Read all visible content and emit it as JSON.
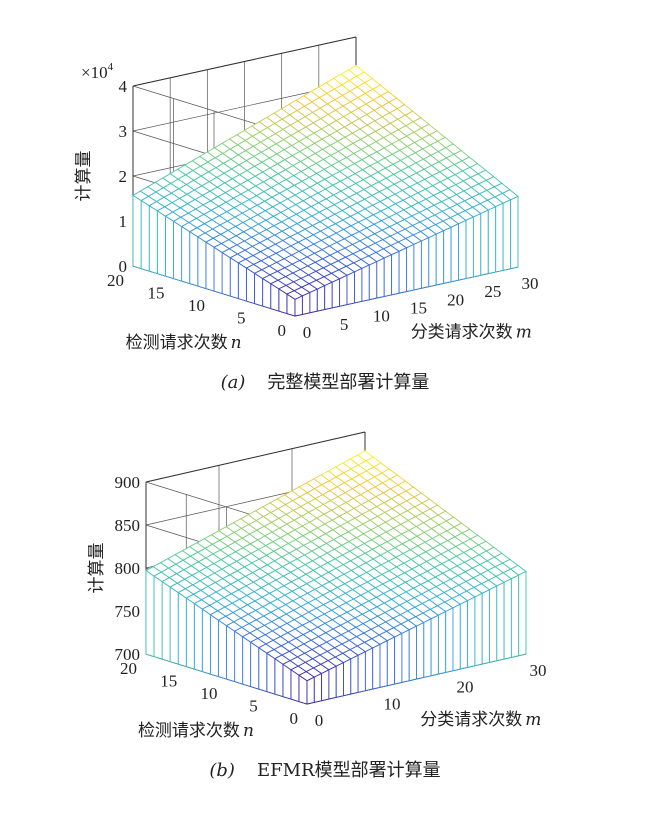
{
  "chart_data": [
    {
      "type": "surface",
      "panel": "a",
      "caption_letter": "(a)",
      "caption_text": "完整模型部署计算量",
      "zlabel": "计算量",
      "xlabel": "分类请求次数",
      "xlabel_var": "m",
      "ylabel": "检测请求次数",
      "ylabel_var": "n",
      "exponent_label": "×10",
      "exponent_power": "4",
      "x_range": [
        0,
        30
      ],
      "y_range": [
        0,
        20
      ],
      "z_range": [
        0,
        4
      ],
      "x_ticks": [
        "0",
        "5",
        "10",
        "15",
        "20",
        "25",
        "30"
      ],
      "y_ticks": [
        "0",
        "5",
        "10",
        "15",
        "20"
      ],
      "z_ticks": [
        "0",
        "1",
        "2",
        "3",
        "4"
      ],
      "grid": true,
      "surface": {
        "z_at_x0_y0": 0.37,
        "z_per_x": 0.04,
        "z_per_y": 0.06,
        "z_per_xy": 0.001
      },
      "colormap": [
        "#3e26a8",
        "#3b6ee3",
        "#35b0d7",
        "#48c9a2",
        "#99d16b",
        "#f4c73d",
        "#f9fb15"
      ]
    },
    {
      "type": "surface",
      "panel": "b",
      "caption_letter": "(b)",
      "caption_text": "EFMR模型部署计算量",
      "zlabel": "计算量",
      "xlabel": "分类请求次数",
      "xlabel_var": "m",
      "ylabel": "检测请求次数",
      "ylabel_var": "n",
      "x_range": [
        0,
        30
      ],
      "y_range": [
        0,
        20
      ],
      "z_range": [
        700,
        900
      ],
      "x_ticks": [
        "0",
        "10",
        "20",
        "30"
      ],
      "y_ticks": [
        "0",
        "5",
        "10",
        "15",
        "20"
      ],
      "z_ticks": [
        "700",
        "750",
        "800",
        "850",
        "900"
      ],
      "grid": true,
      "surface": {
        "z_at_x0_y0": 727,
        "z_per_x": 2.3,
        "z_per_y": 3.5,
        "z_per_xy": 0.02
      },
      "colormap": [
        "#3e26a8",
        "#3b6ee3",
        "#35b0d7",
        "#48c9a2",
        "#99d16b",
        "#f4c73d",
        "#f9fb15"
      ]
    }
  ]
}
